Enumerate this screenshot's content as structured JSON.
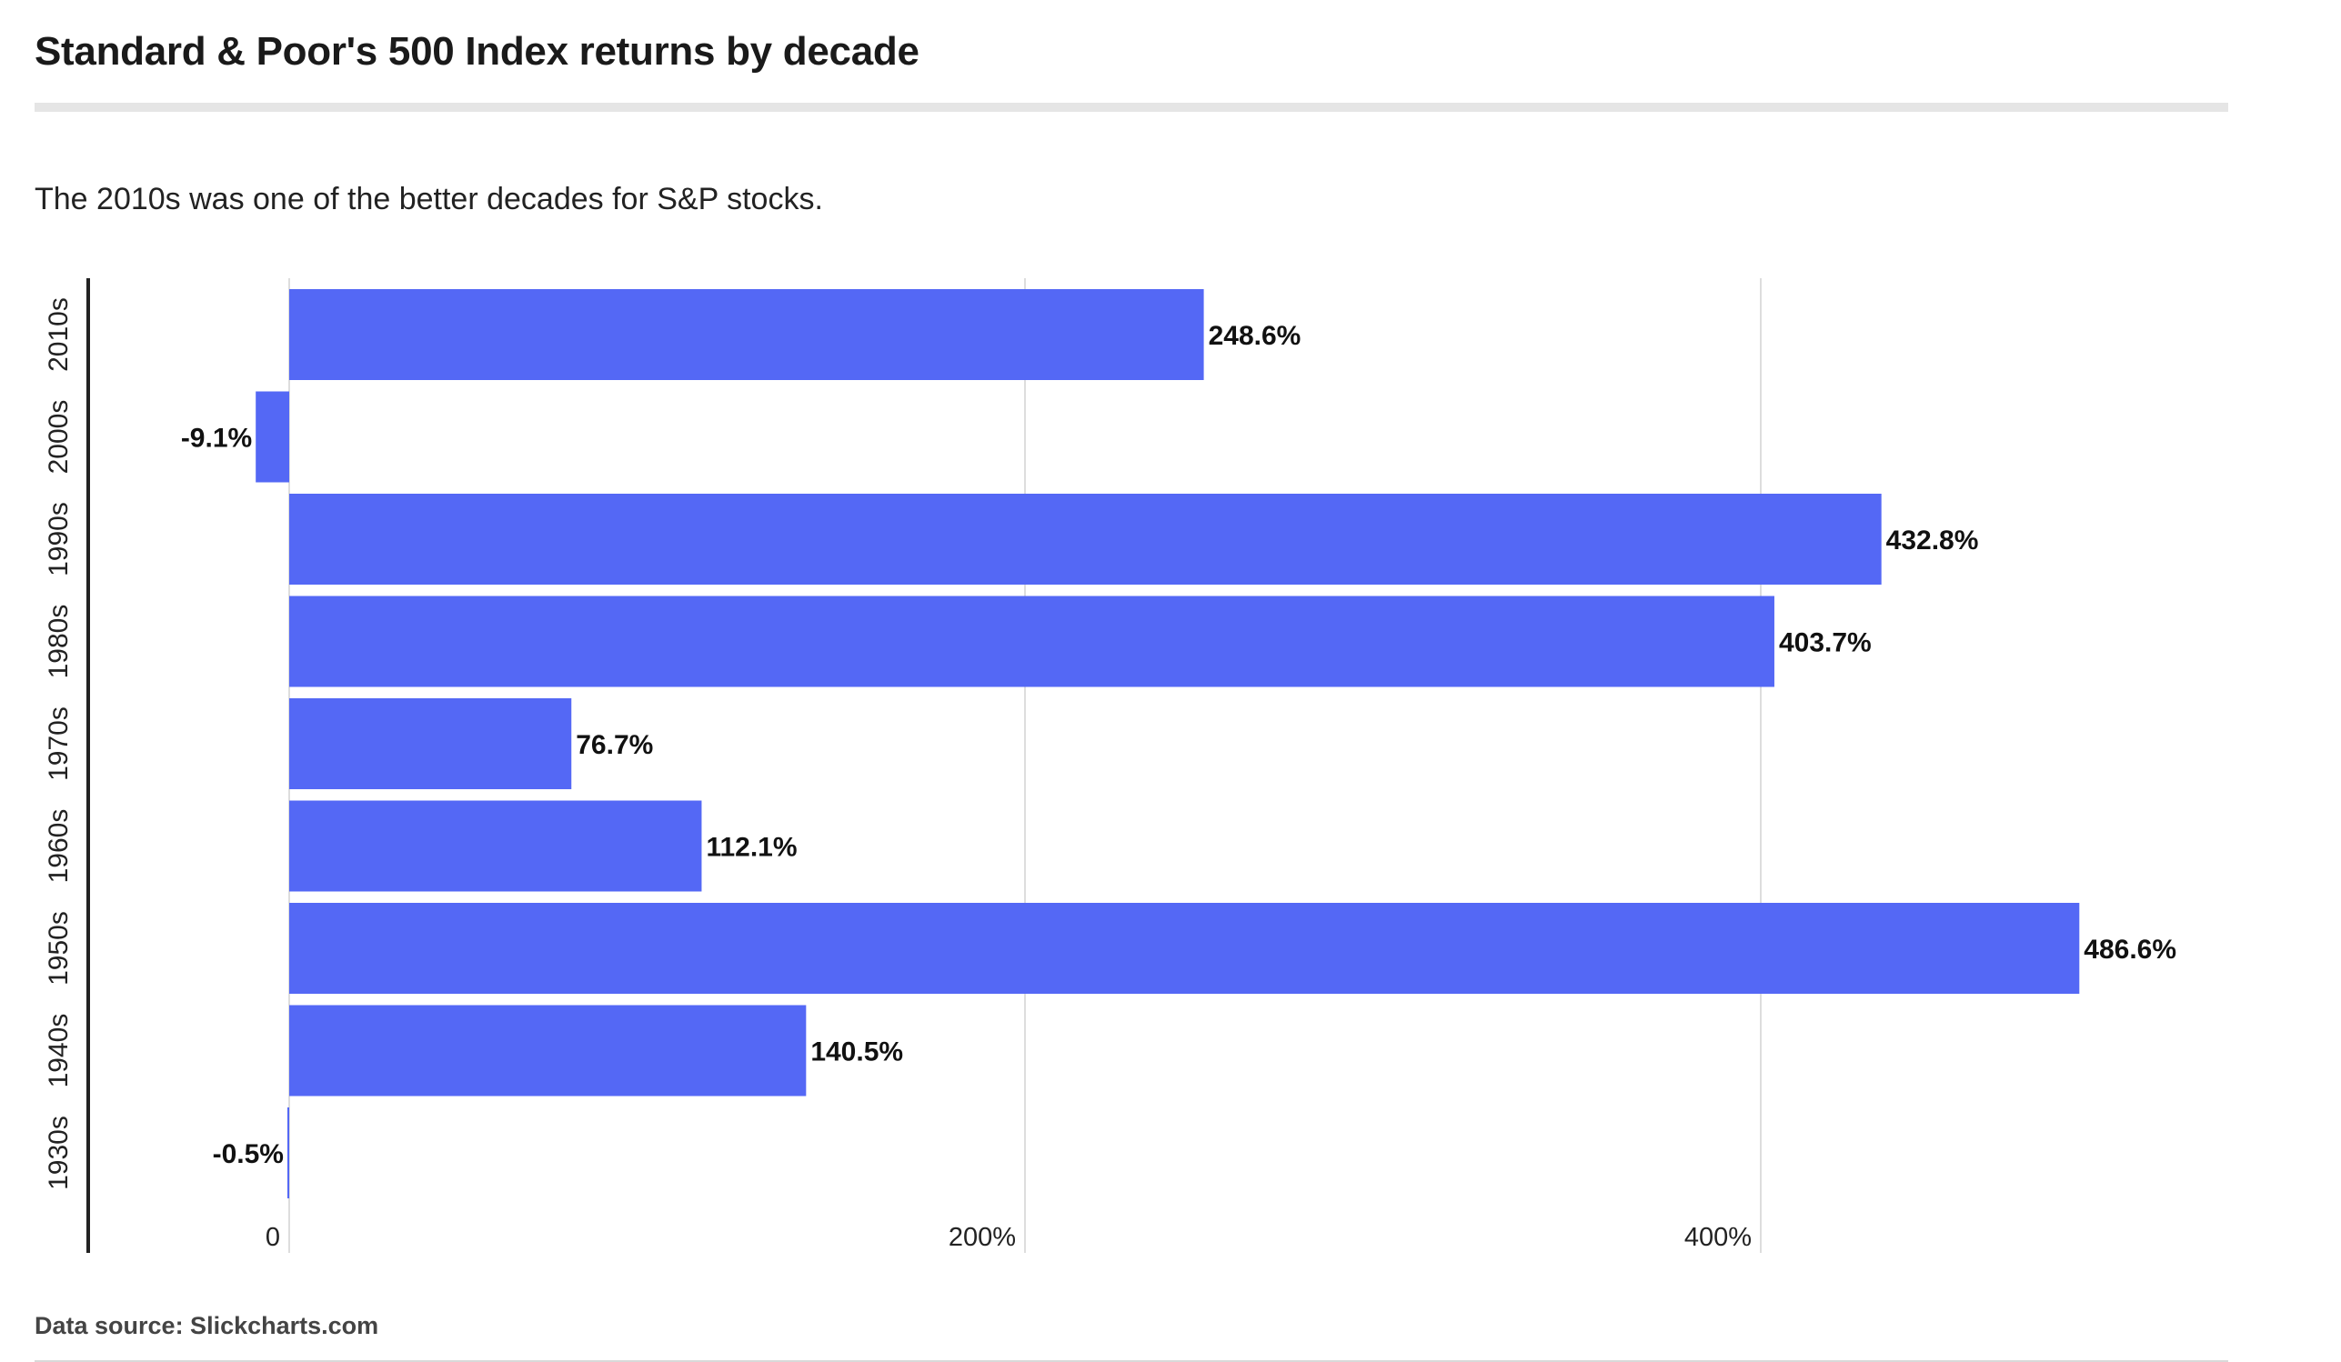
{
  "title": "Standard & Poor's 500 Index returns by decade",
  "subtitle": "The 2010s was one of the better decades for S&P stocks.",
  "source": "Data source: Slickcharts.com",
  "colors": {
    "bar": "#5468f5",
    "grid": "#dddddd",
    "axis": "#222222",
    "label": "#111111"
  },
  "chart_data": {
    "type": "bar",
    "orientation": "horizontal",
    "categories": [
      "2010s",
      "2000s",
      "1990s",
      "1980s",
      "1970s",
      "1960s",
      "1950s",
      "1940s",
      "1930s"
    ],
    "values": [
      248.6,
      -9.1,
      432.8,
      403.7,
      76.7,
      112.1,
      486.6,
      140.5,
      -0.5
    ],
    "value_labels": [
      "248.6%",
      "-9.1%",
      "432.8%",
      "403.7%",
      "76.7%",
      "112.1%",
      "486.6%",
      "140.5%",
      "-0.5%"
    ],
    "x_ticks": [
      {
        "value": 0,
        "label": "0"
      },
      {
        "value": 200,
        "label": "200%"
      },
      {
        "value": 400,
        "label": "400%"
      }
    ],
    "xlim": [
      -55,
      525
    ],
    "grid": true
  }
}
